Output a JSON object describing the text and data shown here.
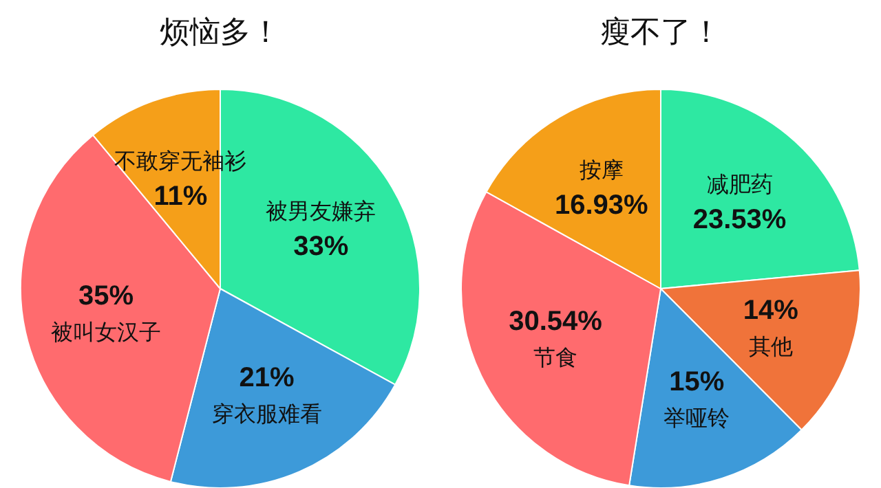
{
  "chart_data": [
    {
      "type": "pie",
      "title": "烦恼多！",
      "categories": [
        "被男友嫌弃",
        "穿衣服难看",
        "被叫女汉子",
        "不敢穿无袖衫"
      ],
      "values": [
        33,
        21,
        35,
        11
      ],
      "value_labels": [
        "33%",
        "21%",
        "35%",
        "11%"
      ],
      "colors": [
        "#2ee8a2",
        "#3d9ad9",
        "#ff6b6e",
        "#f59f19"
      ],
      "legend": false
    },
    {
      "type": "pie",
      "title": "瘦不了！",
      "categories": [
        "减肥药",
        "其他",
        "举哑铃",
        "节食",
        "按摩"
      ],
      "values": [
        23.53,
        14,
        15,
        30.54,
        16.93
      ],
      "value_labels": [
        "23.53%",
        "14%",
        "15%",
        "30.54%",
        "16.93%"
      ],
      "colors": [
        "#2ee8a2",
        "#f0733a",
        "#3d9ad9",
        "#ff6b6e",
        "#f59f19"
      ],
      "legend": false
    }
  ]
}
